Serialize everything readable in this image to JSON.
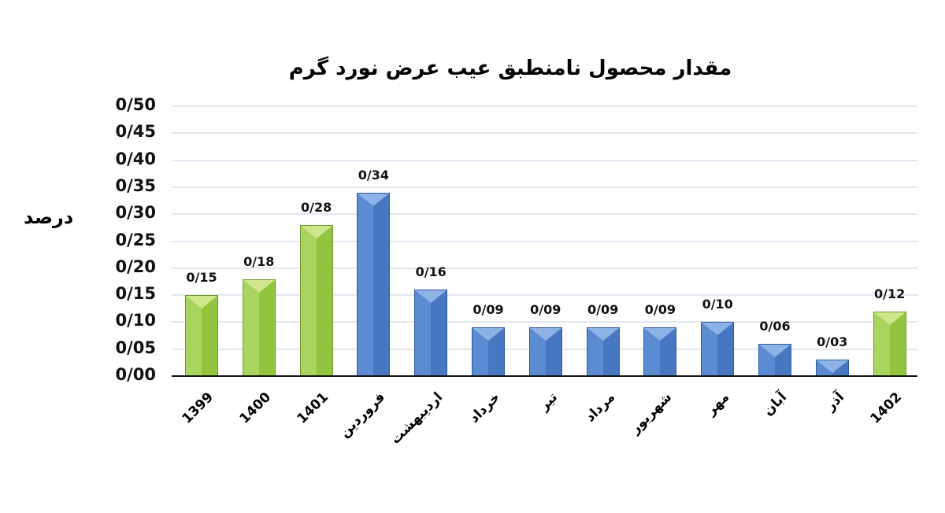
{
  "chart_data": {
    "type": "bar",
    "title": "مقدار محصول نامنطبق عیب عرض نورد گرم",
    "xlabel": "",
    "ylabel": "درصد",
    "ylim": [
      0,
      0.5
    ],
    "grid": true,
    "legend": null,
    "decimal_separator": "/",
    "yticks": [
      "0/00",
      "0/05",
      "0/10",
      "0/15",
      "0/20",
      "0/25",
      "0/30",
      "0/35",
      "0/40",
      "0/45",
      "0/50"
    ],
    "categories": [
      "1399",
      "1400",
      "1401",
      "فروردین",
      "اردیبهشت",
      "خرداد",
      "تیر",
      "مرداد",
      "شهریور",
      "مهر",
      "آبان",
      "آذر",
      "1402"
    ],
    "values": [
      0.15,
      0.18,
      0.28,
      0.34,
      0.16,
      0.09,
      0.09,
      0.09,
      0.09,
      0.1,
      0.06,
      0.03,
      0.12
    ],
    "value_labels": [
      "0/15",
      "0/18",
      "0/28",
      "0/34",
      "0/16",
      "0/09",
      "0/09",
      "0/09",
      "0/09",
      "0/10",
      "0/06",
      "0/03",
      "0/12"
    ],
    "bar_colors": [
      "green",
      "green",
      "green",
      "blue",
      "blue",
      "blue",
      "blue",
      "blue",
      "blue",
      "blue",
      "blue",
      "blue",
      "green"
    ],
    "colors": {
      "green": "#9ccb4c",
      "blue": "#4f7fc6"
    }
  }
}
